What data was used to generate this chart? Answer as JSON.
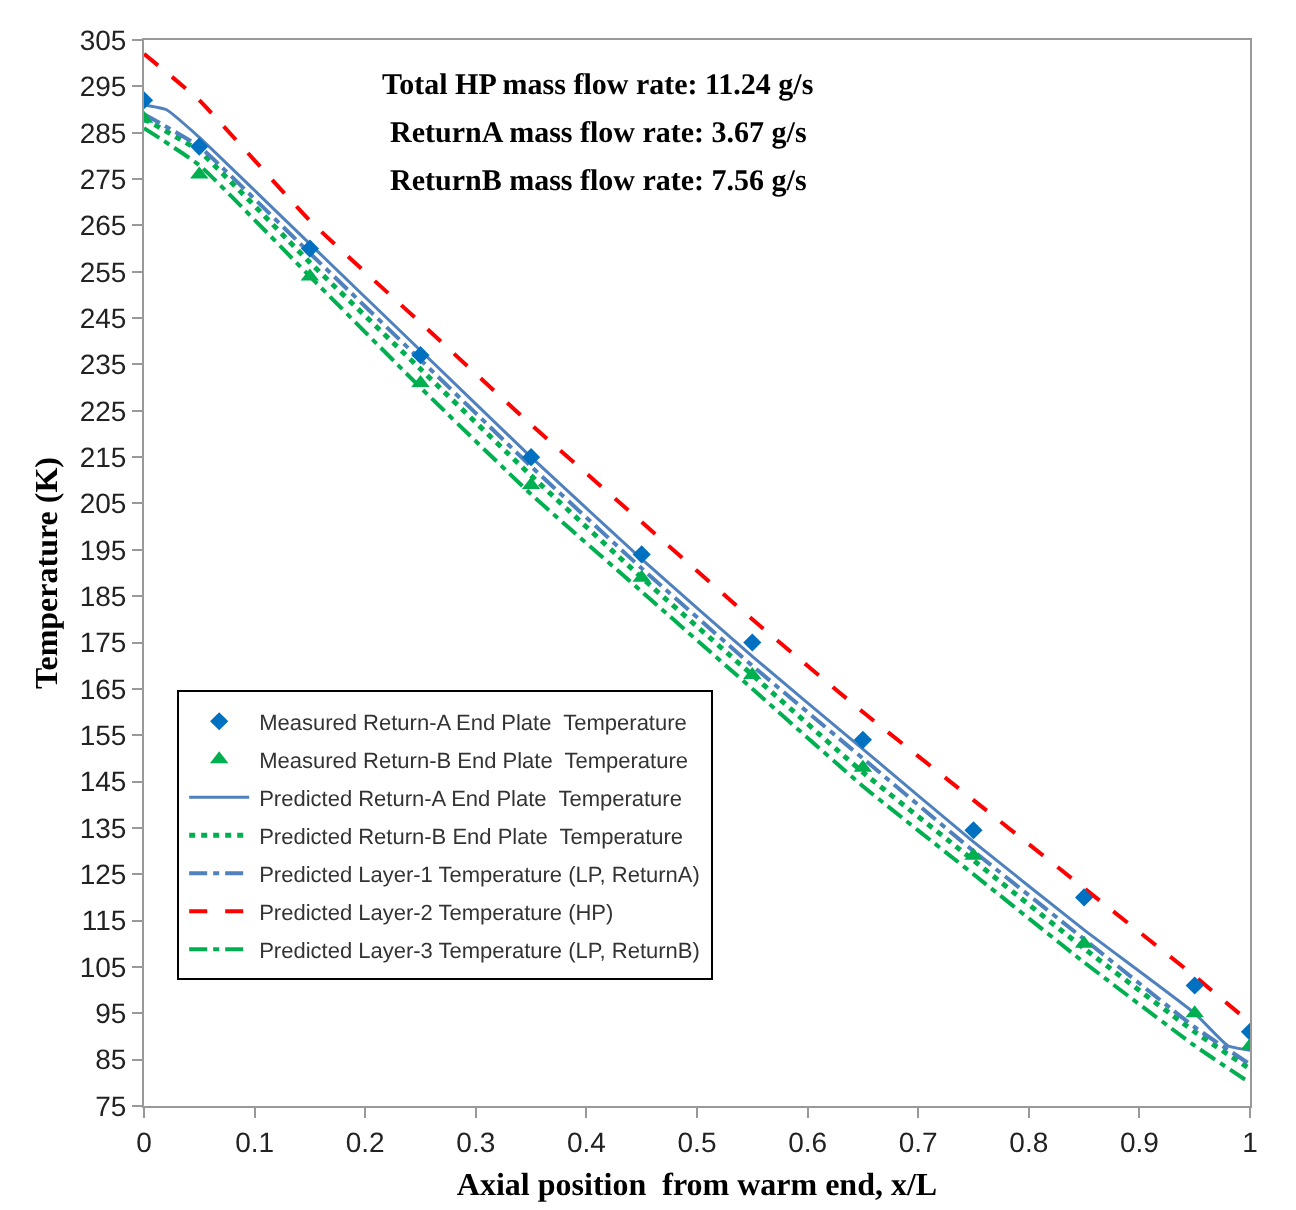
{
  "chart_data": {
    "type": "line",
    "xlabel": "Axial position  from warm end, x/L",
    "ylabel": "Temperature (K)",
    "annotations": [
      "Total HP mass flow rate: 11.24 g/s",
      "ReturnA mass flow rate: 3.67 g/s",
      "ReturnB mass flow rate: 7.56 g/s"
    ],
    "xlim": [
      0,
      1
    ],
    "xticks": [
      0,
      0.1,
      0.2,
      0.3,
      0.4,
      0.5,
      0.6,
      0.7,
      0.8,
      0.9,
      1
    ],
    "ylim": [
      75,
      305
    ],
    "yticks": [
      75,
      85,
      95,
      105,
      115,
      125,
      135,
      145,
      155,
      165,
      175,
      185,
      195,
      205,
      215,
      225,
      235,
      245,
      255,
      265,
      275,
      285,
      295,
      305
    ],
    "grid": false,
    "legend": "bottom left",
    "series": [
      {
        "name": "Measured Return-A End Plate  Temperature",
        "type": "scatter",
        "marker": "diamond",
        "color": "#0070c0",
        "x": [
          0,
          0.05,
          0.15,
          0.25,
          0.35,
          0.45,
          0.55,
          0.65,
          0.75,
          0.85,
          0.95,
          1
        ],
        "values": [
          292,
          282,
          260,
          237,
          215,
          194,
          175,
          154,
          134.5,
          120,
          101,
          91
        ]
      },
      {
        "name": "Measured Return-B End Plate  Temperature",
        "type": "scatter",
        "marker": "triangle",
        "color": "#00b050",
        "x": [
          0,
          0.05,
          0.15,
          0.25,
          0.35,
          0.45,
          0.55,
          0.65,
          0.75,
          0.85,
          0.95,
          1
        ],
        "values": [
          288,
          276,
          254,
          231,
          209,
          189,
          168,
          148,
          129,
          110,
          95,
          88
        ]
      },
      {
        "name": "Predicted Return-A End Plate  Temperature",
        "line_style": "solid",
        "color": "#4f81bd",
        "x": [
          0,
          0.02,
          0.05,
          0.15,
          0.25,
          0.35,
          0.45,
          0.55,
          0.65,
          0.75,
          0.85,
          0.95,
          0.98,
          1
        ],
        "values": [
          291,
          290,
          284,
          261,
          238,
          215,
          193,
          172,
          152,
          132,
          113,
          95,
          88,
          87
        ]
      },
      {
        "name": "Predicted Return-B End Plate  Temperature",
        "line_style": "dotted",
        "color": "#00b050",
        "x": [
          0,
          0.05,
          0.15,
          0.25,
          0.35,
          0.45,
          0.55,
          0.65,
          0.75,
          0.85,
          0.95,
          1
        ],
        "values": [
          288,
          281,
          257,
          234,
          211,
          189,
          168,
          147,
          128,
          109,
          91,
          83
        ]
      },
      {
        "name": "Predicted Layer-1 Temperature (LP, ReturnA)",
        "line_style": "dashdot",
        "color": "#4f81bd",
        "x": [
          0,
          0.05,
          0.15,
          0.25,
          0.35,
          0.45,
          0.55,
          0.65,
          0.75,
          0.85,
          0.95,
          1
        ],
        "values": [
          289,
          282,
          259,
          236,
          213,
          191,
          170,
          150,
          130,
          111,
          92,
          84
        ]
      },
      {
        "name": "Predicted Layer-2 Temperature (HP)",
        "line_style": "dashed",
        "color": "#ff0000",
        "x": [
          0,
          0.05,
          0.15,
          0.25,
          0.35,
          0.45,
          0.55,
          0.65,
          0.75,
          0.85,
          0.95,
          1
        ],
        "values": [
          302,
          292,
          266,
          244,
          222,
          201,
          180,
          160,
          141,
          122,
          103,
          93
        ]
      },
      {
        "name": "Predicted Layer-3 Temperature (LP, ReturnB)",
        "line_style": "dashdot",
        "color": "#00b050",
        "x": [
          0,
          0.05,
          0.15,
          0.25,
          0.35,
          0.45,
          0.55,
          0.65,
          0.75,
          0.85,
          0.95,
          1
        ],
        "values": [
          286,
          278,
          254,
          230,
          207,
          186,
          165,
          144,
          125,
          106,
          88,
          80
        ]
      }
    ]
  }
}
